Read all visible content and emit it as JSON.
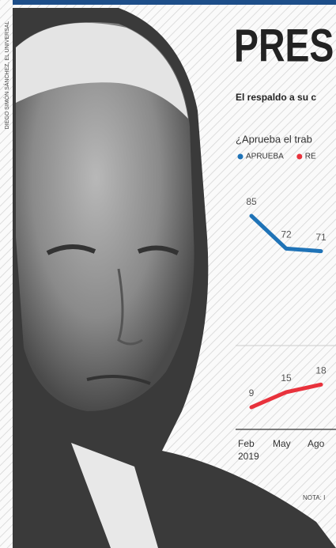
{
  "chart_data": {
    "type": "line",
    "title": "PRES",
    "subtitle": "El respaldo a su c",
    "question": "¿Aprueba el trab",
    "credit": "DIEGO SIMÓN SÁNCHEZ, EL UNIVERSAL",
    "note": "NOTA: I",
    "categories": [
      "Feb",
      "May",
      "Ago"
    ],
    "year_label": "2019",
    "series": [
      {
        "name": "APRUEBA",
        "color": "#1f73b7",
        "values": [
          85,
          72,
          71
        ]
      },
      {
        "name": "RE",
        "color": "#e8323c",
        "values": [
          9,
          15,
          18
        ]
      }
    ]
  }
}
